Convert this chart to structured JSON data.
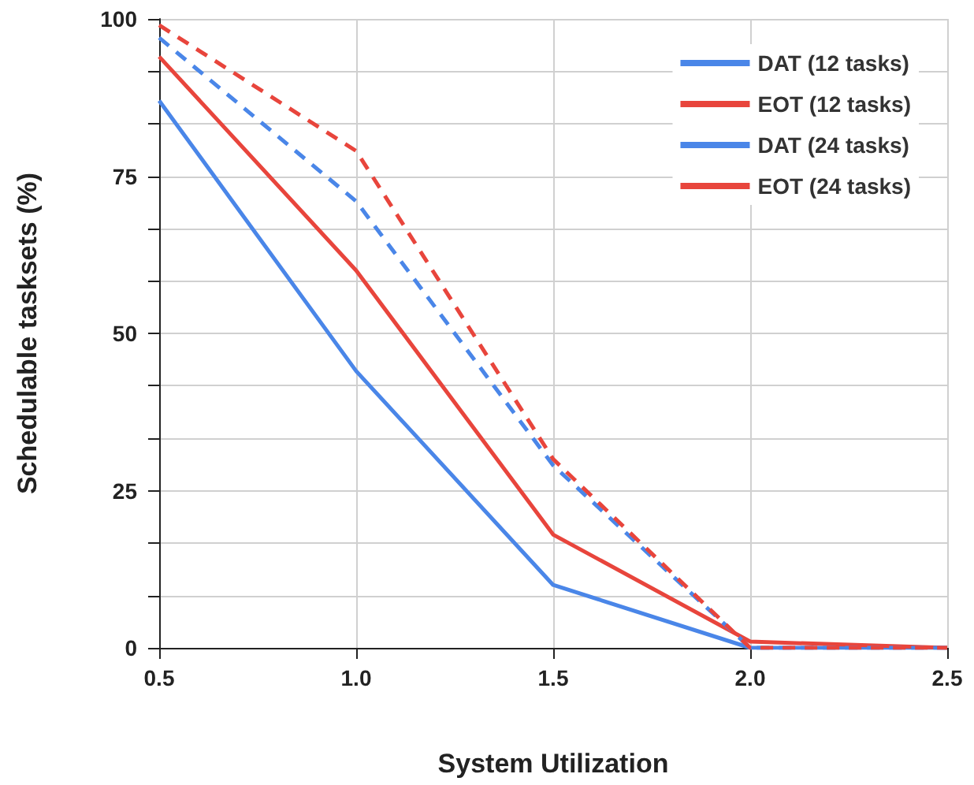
{
  "chart_data": {
    "type": "line",
    "xlabel": "System Utilization",
    "ylabel": "Schedulable tasksets (%)",
    "x": [
      0.5,
      1.0,
      1.5,
      2.0,
      2.5
    ],
    "series": [
      {
        "name": "DAT (12 tasks)",
        "color": "#4a86e8",
        "line_style": "solid",
        "values": [
          87,
          44,
          10,
          0,
          0
        ]
      },
      {
        "name": "EOT (12 tasks)",
        "color": "#e8453c",
        "line_style": "solid",
        "values": [
          94,
          60,
          18,
          1,
          0
        ]
      },
      {
        "name": "DAT (24 tasks)",
        "color": "#4a86e8",
        "line_style": "dashed",
        "values": [
          97,
          71,
          29,
          0,
          0
        ]
      },
      {
        "name": "EOT (24 tasks)",
        "color": "#e8453c",
        "line_style": "dashed",
        "values": [
          99,
          79,
          30,
          0,
          0
        ]
      }
    ],
    "xlim": [
      0.5,
      2.5
    ],
    "xticks": [
      {
        "value": 0.5,
        "label": "0.5"
      },
      {
        "value": 1.0,
        "label": "1.0"
      },
      {
        "value": 1.5,
        "label": "1.5"
      },
      {
        "value": 2.0,
        "label": "2.0"
      },
      {
        "value": 2.5,
        "label": "2.5"
      }
    ],
    "ylim": [
      0,
      100
    ],
    "yticks": [
      0,
      {
        "value": 8.3,
        "label": null
      },
      {
        "value": 16.7,
        "label": null
      },
      25,
      {
        "value": 33.3,
        "label": null
      },
      {
        "value": 41.7,
        "label": null
      },
      50,
      {
        "value": 58.3,
        "label": null
      },
      {
        "value": 66.7,
        "label": null
      },
      75,
      {
        "value": 83.3,
        "label": null
      },
      {
        "value": 91.7,
        "label": null
      },
      100
    ],
    "grid": true,
    "legend": "top right",
    "marker": "none"
  }
}
